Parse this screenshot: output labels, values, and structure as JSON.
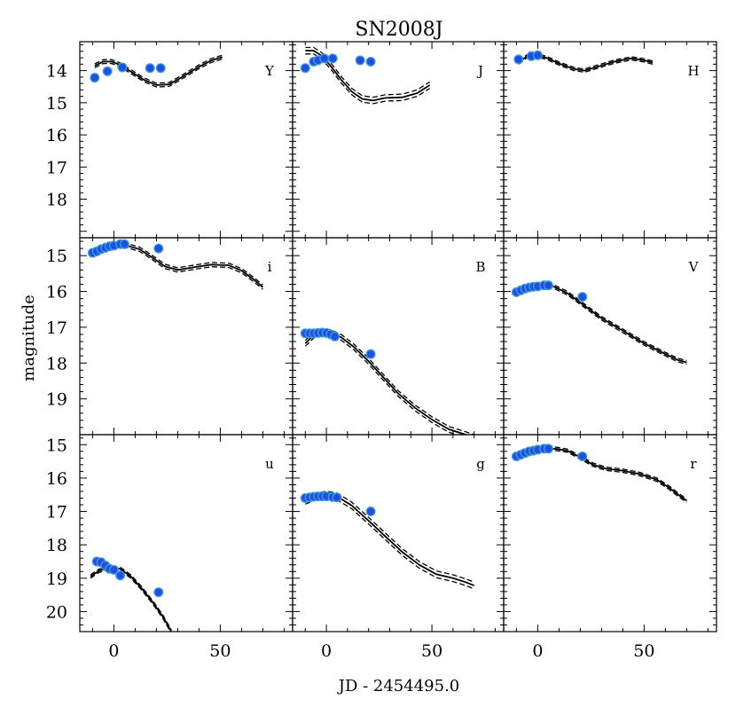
{
  "chart_data": {
    "type": "scatter",
    "title": "SN2008J",
    "xlabel": "JD - 2454495.0",
    "ylabel": "magnitude",
    "xlim": [
      -16,
      84
    ],
    "x_ticks": [
      0,
      50
    ],
    "x_tick_labels": [
      "0",
      "50"
    ],
    "marker_color": "#1f4fe0",
    "marker_edge_color": "#3a9ad9",
    "line_color": "#000000",
    "rows": [
      {
        "ylim": [
          19.2,
          13.1
        ],
        "y_ticks": [
          14,
          15,
          16,
          17,
          18
        ],
        "y_tick_labels": [
          "14",
          "15",
          "16",
          "17",
          "18"
        ],
        "panels": [
          {
            "band": "Y",
            "points": [
              [
                -9,
                14.22
              ],
              [
                -3,
                14.02
              ],
              [
                4,
                13.9
              ],
              [
                17,
                13.92
              ],
              [
                22,
                13.92
              ]
            ],
            "model": [
              [
                -9,
                13.85
              ],
              [
                -5,
                13.72
              ],
              [
                -1,
                13.72
              ],
              [
                3,
                13.82
              ],
              [
                8,
                14.03
              ],
              [
                14,
                14.28
              ],
              [
                20,
                14.45
              ],
              [
                26,
                14.43
              ],
              [
                32,
                14.2
              ],
              [
                40,
                13.88
              ],
              [
                46,
                13.68
              ],
              [
                51,
                13.58
              ]
            ],
            "band_width": 0.06
          },
          {
            "band": "J",
            "points": [
              [
                -10,
                13.92
              ],
              [
                -6,
                13.72
              ],
              [
                -4,
                13.68
              ],
              [
                -1,
                13.62
              ],
              [
                3,
                13.62
              ],
              [
                16,
                13.68
              ],
              [
                21,
                13.72
              ]
            ],
            "model": [
              [
                -10,
                13.38
              ],
              [
                -6,
                13.38
              ],
              [
                -2,
                13.55
              ],
              [
                2,
                13.85
              ],
              [
                7,
                14.28
              ],
              [
                12,
                14.65
              ],
              [
                17,
                14.88
              ],
              [
                22,
                14.93
              ],
              [
                28,
                14.85
              ],
              [
                36,
                14.83
              ],
              [
                43,
                14.7
              ],
              [
                49,
                14.45
              ]
            ],
            "band_width": 0.1
          },
          {
            "band": "H",
            "points": [
              [
                -9,
                13.65
              ],
              [
                -3,
                13.55
              ],
              [
                0,
                13.52
              ]
            ],
            "model": [
              [
                -9,
                13.75
              ],
              [
                -5,
                13.55
              ],
              [
                -1,
                13.52
              ],
              [
                4,
                13.6
              ],
              [
                10,
                13.78
              ],
              [
                17,
                13.95
              ],
              [
                22,
                14.0
              ],
              [
                28,
                13.88
              ],
              [
                36,
                13.72
              ],
              [
                44,
                13.62
              ],
              [
                50,
                13.68
              ],
              [
                54,
                13.75
              ]
            ],
            "band_width": 0.05
          }
        ]
      },
      {
        "ylim": [
          20.0,
          14.5
        ],
        "y_ticks": [
          15,
          16,
          17,
          18,
          19
        ],
        "y_tick_labels": [
          "15",
          "16",
          "17",
          "18",
          "19"
        ],
        "panels": [
          {
            "band": "i",
            "points": [
              [
                -10,
                14.92
              ],
              [
                -8,
                14.88
              ],
              [
                -6,
                14.82
              ],
              [
                -4,
                14.78
              ],
              [
                -2,
                14.74
              ],
              [
                0,
                14.72
              ],
              [
                3,
                14.68
              ],
              [
                5,
                14.68
              ],
              [
                21,
                14.8
              ]
            ],
            "model": [
              [
                -10,
                14.95
              ],
              [
                -5,
                14.82
              ],
              [
                0,
                14.72
              ],
              [
                5,
                14.7
              ],
              [
                12,
                14.82
              ],
              [
                18,
                15.05
              ],
              [
                24,
                15.3
              ],
              [
                30,
                15.4
              ],
              [
                38,
                15.32
              ],
              [
                46,
                15.25
              ],
              [
                54,
                15.27
              ],
              [
                60,
                15.42
              ],
              [
                66,
                15.68
              ],
              [
                70,
                15.88
              ]
            ],
            "band_width": 0.06
          },
          {
            "band": "B",
            "points": [
              [
                -10,
                17.17
              ],
              [
                -8,
                17.17
              ],
              [
                -6,
                17.17
              ],
              [
                -4,
                17.16
              ],
              [
                -2,
                17.15
              ],
              [
                0,
                17.16
              ],
              [
                2,
                17.2
              ],
              [
                4,
                17.26
              ],
              [
                21,
                17.75
              ]
            ],
            "model": [
              [
                -10,
                17.45
              ],
              [
                -6,
                17.22
              ],
              [
                -2,
                17.12
              ],
              [
                2,
                17.15
              ],
              [
                7,
                17.28
              ],
              [
                13,
                17.55
              ],
              [
                20,
                17.95
              ],
              [
                27,
                18.4
              ],
              [
                34,
                18.85
              ],
              [
                42,
                19.25
              ],
              [
                50,
                19.58
              ],
              [
                58,
                19.85
              ],
              [
                66,
                20.0
              ],
              [
                70,
                20.08
              ]
            ],
            "band_width": 0.08
          },
          {
            "band": "V",
            "points": [
              [
                -10,
                16.02
              ],
              [
                -8,
                15.97
              ],
              [
                -6,
                15.92
              ],
              [
                -4,
                15.89
              ],
              [
                -2,
                15.87
              ],
              [
                0,
                15.86
              ],
              [
                3,
                15.83
              ],
              [
                5,
                15.83
              ],
              [
                21,
                16.15
              ]
            ],
            "model": [
              [
                -10,
                16.0
              ],
              [
                -4,
                15.87
              ],
              [
                2,
                15.8
              ],
              [
                7,
                15.85
              ],
              [
                14,
                16.05
              ],
              [
                22,
                16.4
              ],
              [
                30,
                16.75
              ],
              [
                40,
                17.1
              ],
              [
                50,
                17.45
              ],
              [
                60,
                17.75
              ],
              [
                66,
                17.92
              ],
              [
                70,
                17.98
              ]
            ],
            "band_width": 0.05
          }
        ]
      },
      {
        "ylim": [
          20.6,
          14.7
        ],
        "y_ticks": [
          15,
          16,
          17,
          18,
          19,
          20
        ],
        "y_tick_labels": [
          "15",
          "16",
          "17",
          "18",
          "19",
          "20"
        ],
        "panels": [
          {
            "band": "u",
            "points": [
              [
                -8,
                18.5
              ],
              [
                -6,
                18.52
              ],
              [
                -4,
                18.62
              ],
              [
                -2,
                18.72
              ],
              [
                0,
                18.75
              ],
              [
                3,
                18.92
              ],
              [
                21,
                19.42
              ]
            ],
            "model": [
              [
                -11,
                18.95
              ],
              [
                -7,
                18.78
              ],
              [
                -4,
                18.72
              ],
              [
                0,
                18.7
              ],
              [
                3,
                18.72
              ],
              [
                8,
                18.95
              ],
              [
                13,
                19.3
              ],
              [
                18,
                19.7
              ],
              [
                23,
                20.15
              ],
              [
                27,
                20.6
              ]
            ],
            "band_width": 0.05
          },
          {
            "band": "g",
            "points": [
              [
                -10,
                16.6
              ],
              [
                -8,
                16.58
              ],
              [
                -6,
                16.56
              ],
              [
                -4,
                16.55
              ],
              [
                -2,
                16.55
              ],
              [
                0,
                16.55
              ],
              [
                3,
                16.57
              ],
              [
                5,
                16.58
              ],
              [
                21,
                17.0
              ]
            ],
            "model": [
              [
                -10,
                16.68
              ],
              [
                -5,
                16.55
              ],
              [
                0,
                16.5
              ],
              [
                5,
                16.55
              ],
              [
                12,
                16.82
              ],
              [
                20,
                17.28
              ],
              [
                28,
                17.75
              ],
              [
                36,
                18.22
              ],
              [
                44,
                18.6
              ],
              [
                52,
                18.88
              ],
              [
                60,
                19.0
              ],
              [
                66,
                19.12
              ],
              [
                70,
                19.22
              ]
            ],
            "band_width": 0.1
          },
          {
            "band": "r",
            "points": [
              [
                -10,
                15.35
              ],
              [
                -8,
                15.3
              ],
              [
                -6,
                15.25
              ],
              [
                -4,
                15.2
              ],
              [
                -2,
                15.18
              ],
              [
                0,
                15.15
              ],
              [
                3,
                15.12
              ],
              [
                5,
                15.12
              ],
              [
                21,
                15.35
              ]
            ],
            "model": [
              [
                -10,
                15.38
              ],
              [
                -4,
                15.22
              ],
              [
                2,
                15.15
              ],
              [
                8,
                15.12
              ],
              [
                14,
                15.18
              ],
              [
                20,
                15.38
              ],
              [
                26,
                15.6
              ],
              [
                32,
                15.72
              ],
              [
                40,
                15.78
              ],
              [
                48,
                15.88
              ],
              [
                56,
                16.05
              ],
              [
                62,
                16.3
              ],
              [
                66,
                16.5
              ],
              [
                70,
                16.68
              ]
            ],
            "band_width": 0.05
          }
        ]
      }
    ]
  }
}
